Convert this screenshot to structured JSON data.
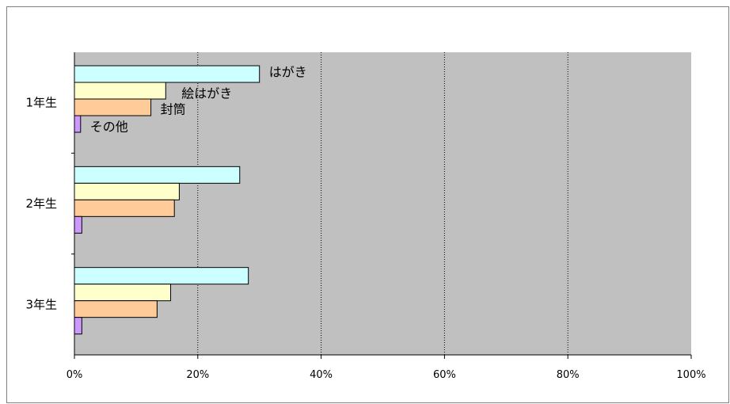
{
  "chart_data": {
    "type": "bar",
    "orientation": "horizontal",
    "categories": [
      "1年生",
      "2年生",
      "3年生"
    ],
    "series": [
      {
        "name": "はがき",
        "values": [
          30,
          26.8,
          28.2
        ],
        "color": "#CCFFFF"
      },
      {
        "name": "絵はがき",
        "values": [
          14.8,
          17,
          15.6
        ],
        "color": "#FFFFCC"
      },
      {
        "name": "封筒",
        "values": [
          12.4,
          16.2,
          13.4
        ],
        "color": "#FFCC99"
      },
      {
        "name": "その他",
        "values": [
          1,
          1.2,
          1.2
        ],
        "color": "#CC99FF"
      }
    ],
    "xlim": [
      0,
      100
    ],
    "x_ticks": [
      "0%",
      "20%",
      "40%",
      "60%",
      "80%",
      "100%"
    ],
    "xgrid": true,
    "gridline_style": "dotted",
    "plot_background": "#C0C0C0",
    "series_labels_on": "1年生"
  }
}
